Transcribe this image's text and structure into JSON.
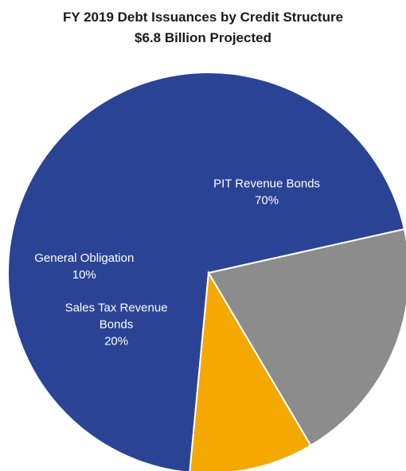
{
  "chart_data": {
    "type": "pie",
    "title": "FY 2019 Debt Issuances  by Credit Structure",
    "subtitle": "$6.8 Billion  Projected",
    "slices": [
      {
        "label_lines": [
          "PIT Revenue Bonds"
        ],
        "pct_text": "70%",
        "value": 70,
        "color": "#2a4394"
      },
      {
        "label_lines": [
          "Sales Tax Revenue",
          "Bonds"
        ],
        "pct_text": "20%",
        "value": 20,
        "color": "#8c8c8c"
      },
      {
        "label_lines": [
          "General Obligation"
        ],
        "pct_text": "10%",
        "value": 10,
        "color": "#f4a800"
      }
    ],
    "legend": "none"
  }
}
